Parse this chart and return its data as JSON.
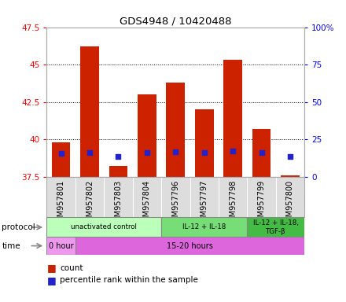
{
  "title": "GDS4948 / 10420488",
  "samples": [
    "GSM957801",
    "GSM957802",
    "GSM957803",
    "GSM957804",
    "GSM957796",
    "GSM957797",
    "GSM957798",
    "GSM957799",
    "GSM957800"
  ],
  "bar_bottom": 37.5,
  "red_tops": [
    39.8,
    46.2,
    38.2,
    43.0,
    43.8,
    42.0,
    45.3,
    40.7,
    37.6
  ],
  "blue_values": [
    39.05,
    39.1,
    38.85,
    39.1,
    39.15,
    39.1,
    39.2,
    39.1,
    38.85
  ],
  "ylim_left": [
    37.5,
    47.5
  ],
  "ylim_right": [
    0,
    100
  ],
  "yticks_left": [
    37.5,
    40.0,
    42.5,
    45.0,
    47.5
  ],
  "ytick_labels_left": [
    "37.5",
    "40",
    "42.5",
    "45",
    "47.5"
  ],
  "yticks_right": [
    0,
    25,
    50,
    75,
    100
  ],
  "ytick_labels_right": [
    "0",
    "25",
    "50",
    "75",
    "100%"
  ],
  "protocol_groups": [
    {
      "label": "unactivated control",
      "start": 0,
      "end": 4,
      "color": "#bbffbb"
    },
    {
      "label": "IL-12 + IL-18",
      "start": 4,
      "end": 7,
      "color": "#77dd77"
    },
    {
      "label": "IL-12 + IL-18,\nTGF-β",
      "start": 7,
      "end": 9,
      "color": "#44bb44"
    }
  ],
  "time_groups": [
    {
      "label": "0 hour",
      "start": 0,
      "end": 1,
      "color": "#ee99ee"
    },
    {
      "label": "15-20 hours",
      "start": 1,
      "end": 9,
      "color": "#dd66dd"
    }
  ],
  "bar_color": "#cc2200",
  "blue_color": "#2222cc",
  "bar_width": 0.65,
  "legend_labels": [
    "count",
    "percentile rank within the sample"
  ],
  "protocol_label": "protocol",
  "time_label": "time",
  "bg_color": "#dddddd"
}
